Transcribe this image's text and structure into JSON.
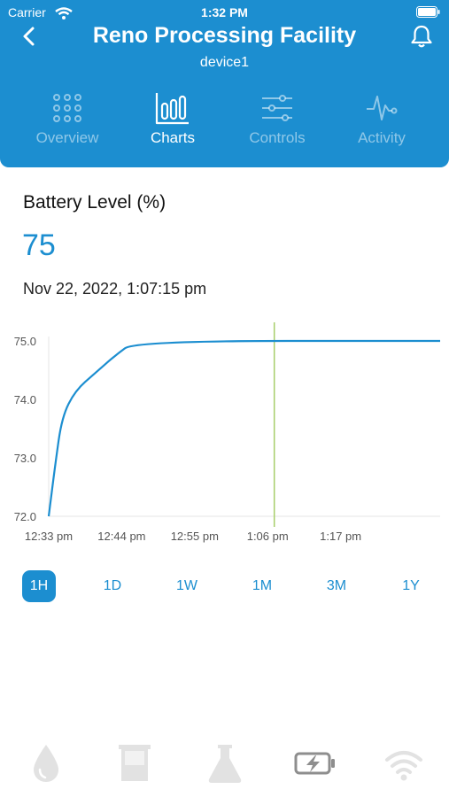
{
  "status_bar": {
    "carrier": "Carrier",
    "time": "1:32 PM"
  },
  "header": {
    "title": "Reno Processing Facility",
    "subtitle": "device1"
  },
  "tabs": [
    {
      "label": "Overview",
      "icon": "grid-dots-icon",
      "active": false
    },
    {
      "label": "Charts",
      "icon": "bar-chart-icon",
      "active": true
    },
    {
      "label": "Controls",
      "icon": "sliders-icon",
      "active": false
    },
    {
      "label": "Activity",
      "icon": "pulse-icon",
      "active": false
    }
  ],
  "metric": {
    "title": "Battery Level (%)",
    "value": "75",
    "timestamp": "Nov 22, 2022, 1:07:15 pm"
  },
  "chart_data": {
    "type": "line",
    "x_ticks": [
      "12:33 pm",
      "12:44 pm",
      "12:55 pm",
      "1:06 pm",
      "1:17 pm"
    ],
    "y_ticks": [
      "72.0",
      "73.0",
      "74.0",
      "75.0"
    ],
    "ylim": [
      72.0,
      75.0
    ],
    "xlim": [
      "12:33 pm",
      "1:32 pm"
    ],
    "series": [
      {
        "x": [
          "12:33 pm",
          "12:34 pm",
          "12:35 pm",
          "12:37 pm",
          "12:40 pm",
          "12:43 pm",
          "12:46 pm",
          "1:32 pm"
        ],
        "y": [
          72.0,
          72.9,
          73.7,
          74.15,
          74.45,
          74.75,
          75.0,
          75.0
        ],
        "color": "#1c8ed0"
      }
    ],
    "cursor_x": "1:07 pm",
    "cursor_color": "#a8cf6a",
    "grid": false
  },
  "ranges": [
    {
      "label": "1H",
      "active": true
    },
    {
      "label": "1D",
      "active": false
    },
    {
      "label": "1W",
      "active": false
    },
    {
      "label": "1M",
      "active": false
    },
    {
      "label": "3M",
      "active": false
    },
    {
      "label": "1Y",
      "active": false
    }
  ],
  "bottom_nav": [
    {
      "icon": "water-drop-icon",
      "active": false
    },
    {
      "icon": "beaker-icon",
      "active": false
    },
    {
      "icon": "flask-icon",
      "active": false
    },
    {
      "icon": "battery-charging-icon",
      "active": true
    },
    {
      "icon": "wifi-icon",
      "active": false
    }
  ]
}
